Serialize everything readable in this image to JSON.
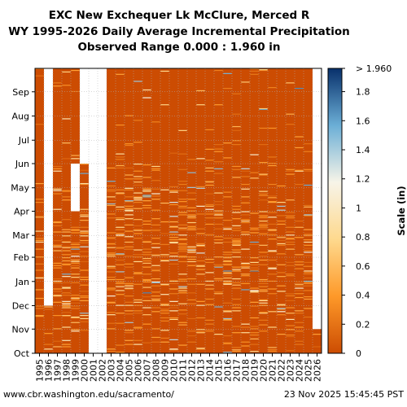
{
  "chart_data": {
    "type": "heatmap",
    "title": [
      "EXC New Exchequer Lk McClure, Merced R",
      "WY 1995-2026 Daily Average Incremental Precipitation",
      "Observed Range 0.000 : 1.960 in"
    ],
    "x_categories": [
      "1995",
      "1996",
      "1997",
      "1998",
      "1999",
      "2000",
      "2001",
      "2002",
      "2003",
      "2004",
      "2005",
      "2006",
      "2007",
      "2008",
      "2009",
      "2010",
      "2011",
      "2012",
      "2013",
      "2014",
      "2015",
      "2016",
      "2017",
      "2018",
      "2019",
      "2020",
      "2021",
      "2022",
      "2023",
      "2024",
      "2025",
      "2026"
    ],
    "y_categories": [
      "Oct",
      "Nov",
      "Dec",
      "Jan",
      "Feb",
      "Mar",
      "Apr",
      "May",
      "Jun",
      "Jul",
      "Aug",
      "Sep"
    ],
    "value_range": [
      0.0,
      1.96
    ],
    "colorbar": {
      "label": "Scale (in)",
      "ticks": [
        0,
        0.2,
        0.4,
        0.6,
        0.8,
        1,
        1.2,
        1.4,
        1.6,
        1.8
      ],
      "tick_labels": [
        "0",
        "0.2",
        "0.4",
        "0.6",
        "0.8",
        "1",
        "1.2",
        "1.4",
        "1.6",
        "1.8"
      ],
      "top_label": "> 1.960",
      "colors": [
        "#cc4c02",
        "#fe9929",
        "#fed98e",
        "#f7f4e8",
        "#6baed6",
        "#08306b"
      ]
    },
    "background_color": "#cc4c02",
    "missing_color": "#ffffff",
    "missing_blocks": [
      {
        "year": "1996",
        "from_month": "Dec",
        "to_month": "Sep",
        "approx": true
      },
      {
        "year": "1999",
        "from_month": "Apr",
        "to_month": "May",
        "approx": true
      },
      {
        "year": "2000",
        "from_month": "Jun",
        "to_month": "Sep",
        "approx": true
      },
      {
        "year": "2001",
        "from_month": "Oct",
        "to_month": "Sep",
        "approx": true
      },
      {
        "year": "2002",
        "from_month": "Oct",
        "to_month": "Sep",
        "approx": true
      },
      {
        "year": "2026",
        "from_month": "Nov",
        "to_month": "Sep",
        "approx": true
      }
    ],
    "grid": true
  },
  "footer": {
    "left": "www.cbr.washington.edu/sacramento/",
    "right": "23 Nov 2025 15:45:45 PST"
  }
}
